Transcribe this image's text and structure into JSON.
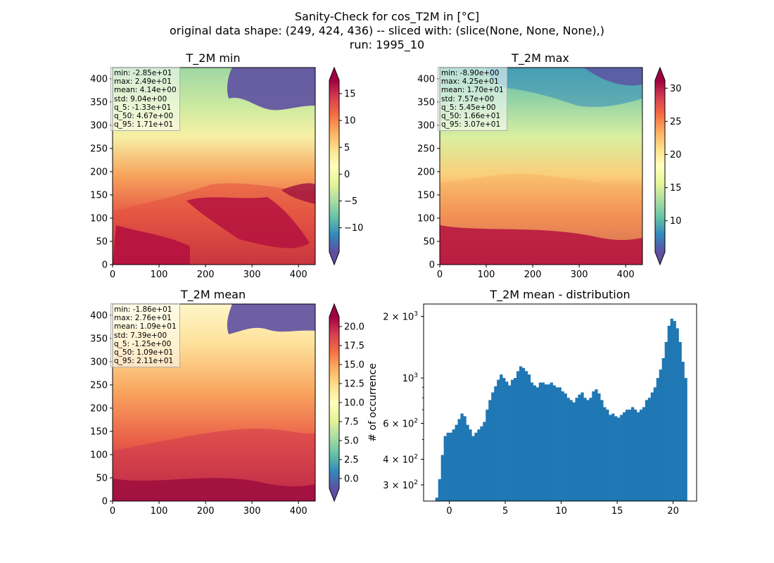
{
  "title_lines": [
    "Sanity-Check for cos_T2M in [°C]",
    "original data shape: (249, 424, 436) -- sliced with: (slice(None, None, None),)",
    "run: 1995_10"
  ],
  "colors": {
    "hist_bar": "#1f77b4",
    "map_cmap": "Spectral_r",
    "ocean_warm": "#a0103f",
    "ice": "#5e4fa2"
  },
  "chart_data": [
    {
      "type": "heatmap",
      "title": "T_2M min",
      "x_ticks": [
        0,
        100,
        200,
        300,
        400
      ],
      "y_ticks": [
        0,
        50,
        100,
        150,
        200,
        250,
        300,
        350,
        400
      ],
      "xlim": [
        0,
        436
      ],
      "ylim": [
        0,
        424
      ],
      "colorbar": {
        "range": [
          -14.5,
          17.5
        ],
        "ticks": [
          -10,
          -5,
          0,
          5,
          10,
          15
        ],
        "tick_labels": [
          "−10",
          "−5",
          "0",
          "5",
          "10",
          "15"
        ],
        "extend": "both"
      },
      "stats": [
        "min: -2.85e+01",
        "max: 2.49e+01",
        "mean: 4.14e+00",
        "std: 9.04e+00",
        "q_5: -1.33e+01",
        "q_50: 4.67e+00",
        "q_95: 1.71e+01"
      ]
    },
    {
      "type": "heatmap",
      "title": "T_2M max",
      "x_ticks": [
        0,
        100,
        200,
        300,
        400
      ],
      "y_ticks": [
        0,
        50,
        100,
        150,
        200,
        250,
        300,
        350,
        400
      ],
      "xlim": [
        0,
        436
      ],
      "ylim": [
        0,
        424
      ],
      "colorbar": {
        "range": [
          5.3,
          31.2
        ],
        "ticks": [
          10,
          15,
          20,
          25,
          30
        ],
        "tick_labels": [
          "10",
          "15",
          "20",
          "25",
          "30"
        ],
        "extend": "both"
      },
      "stats": [
        "min: -8.90e+00",
        "max: 4.25e+01",
        "mean: 1.70e+01",
        "std: 7.57e+00",
        "q_5: 5.45e+00",
        "q_50: 1.66e+01",
        "q_95: 3.07e+01"
      ]
    },
    {
      "type": "heatmap",
      "title": "T_2M mean",
      "x_ticks": [
        0,
        100,
        200,
        300,
        400
      ],
      "y_ticks": [
        0,
        50,
        100,
        150,
        200,
        250,
        300,
        350,
        400
      ],
      "xlim": [
        0,
        436
      ],
      "ylim": [
        0,
        424
      ],
      "colorbar": {
        "range": [
          -1.3,
          21.3
        ],
        "ticks": [
          0,
          2.5,
          5,
          7.5,
          10,
          12.5,
          15,
          17.5,
          20
        ],
        "tick_labels": [
          "0.0",
          "2.5",
          "5.0",
          "7.5",
          "10.0",
          "12.5",
          "15.0",
          "17.5",
          "20.0"
        ],
        "extend": "both"
      },
      "stats": [
        "min: -1.86e+01",
        "max: 2.76e+01",
        "mean: 1.09e+01",
        "std: 7.39e+00",
        "q_5: -1.25e+00",
        "q_50: 1.09e+01",
        "q_95: 2.11e+01"
      ]
    },
    {
      "type": "bar",
      "subtype": "histogram",
      "title": "T_2M mean - distribution",
      "ylabel": "# of occurrence",
      "y_scale": "log",
      "xlim": [
        -2.3,
        22.1
      ],
      "ylim": [
        250,
        2300
      ],
      "x_ticks": [
        0,
        5,
        10,
        15,
        20
      ],
      "y_ticks": [
        {
          "value": 300,
          "mantissa": "3",
          "exp": "2"
        },
        {
          "value": 400,
          "mantissa": "4",
          "exp": "2"
        },
        {
          "value": 600,
          "mantissa": "6",
          "exp": "2"
        },
        {
          "value": 1000,
          "mantissa": "",
          "exp": "3"
        },
        {
          "value": 2000,
          "mantissa": "2",
          "exp": "3"
        }
      ],
      "x": [
        -1.25,
        -1.0,
        -0.75,
        -0.5,
        -0.25,
        0.0,
        0.25,
        0.5,
        0.75,
        1.0,
        1.25,
        1.5,
        1.75,
        2.0,
        2.25,
        2.5,
        2.75,
        3.0,
        3.25,
        3.5,
        3.75,
        4.0,
        4.25,
        4.5,
        4.75,
        5.0,
        5.25,
        5.5,
        5.75,
        6.0,
        6.25,
        6.5,
        6.75,
        7.0,
        7.25,
        7.5,
        7.75,
        8.0,
        8.25,
        8.5,
        8.75,
        9.0,
        9.25,
        9.5,
        9.75,
        10.0,
        10.25,
        10.5,
        10.75,
        11.0,
        11.25,
        11.5,
        11.75,
        12.0,
        12.25,
        12.5,
        12.75,
        13.0,
        13.25,
        13.5,
        13.75,
        14.0,
        14.25,
        14.5,
        14.75,
        15.0,
        15.25,
        15.5,
        15.75,
        16.0,
        16.25,
        16.5,
        16.75,
        17.0,
        17.25,
        17.5,
        17.75,
        18.0,
        18.25,
        18.5,
        18.75,
        19.0,
        19.25,
        19.5,
        19.75,
        20.0,
        20.25,
        20.5,
        20.75,
        21.0
      ],
      "bin_width": 0.25,
      "values": [
        260,
        320,
        420,
        520,
        540,
        540,
        560,
        590,
        630,
        670,
        650,
        590,
        560,
        520,
        540,
        560,
        580,
        610,
        700,
        780,
        850,
        910,
        980,
        1040,
        1000,
        960,
        920,
        980,
        1000,
        1080,
        1140,
        1120,
        1080,
        1040,
        950,
        920,
        900,
        950,
        950,
        930,
        930,
        950,
        920,
        900,
        900,
        860,
        840,
        800,
        780,
        760,
        800,
        830,
        850,
        800,
        780,
        800,
        860,
        880,
        840,
        780,
        720,
        700,
        660,
        670,
        650,
        640,
        660,
        680,
        700,
        700,
        720,
        700,
        680,
        700,
        720,
        780,
        800,
        850,
        900,
        1000,
        1100,
        1250,
        1500,
        1800,
        1950,
        1900,
        1750,
        1500,
        1200,
        1000
      ]
    }
  ]
}
